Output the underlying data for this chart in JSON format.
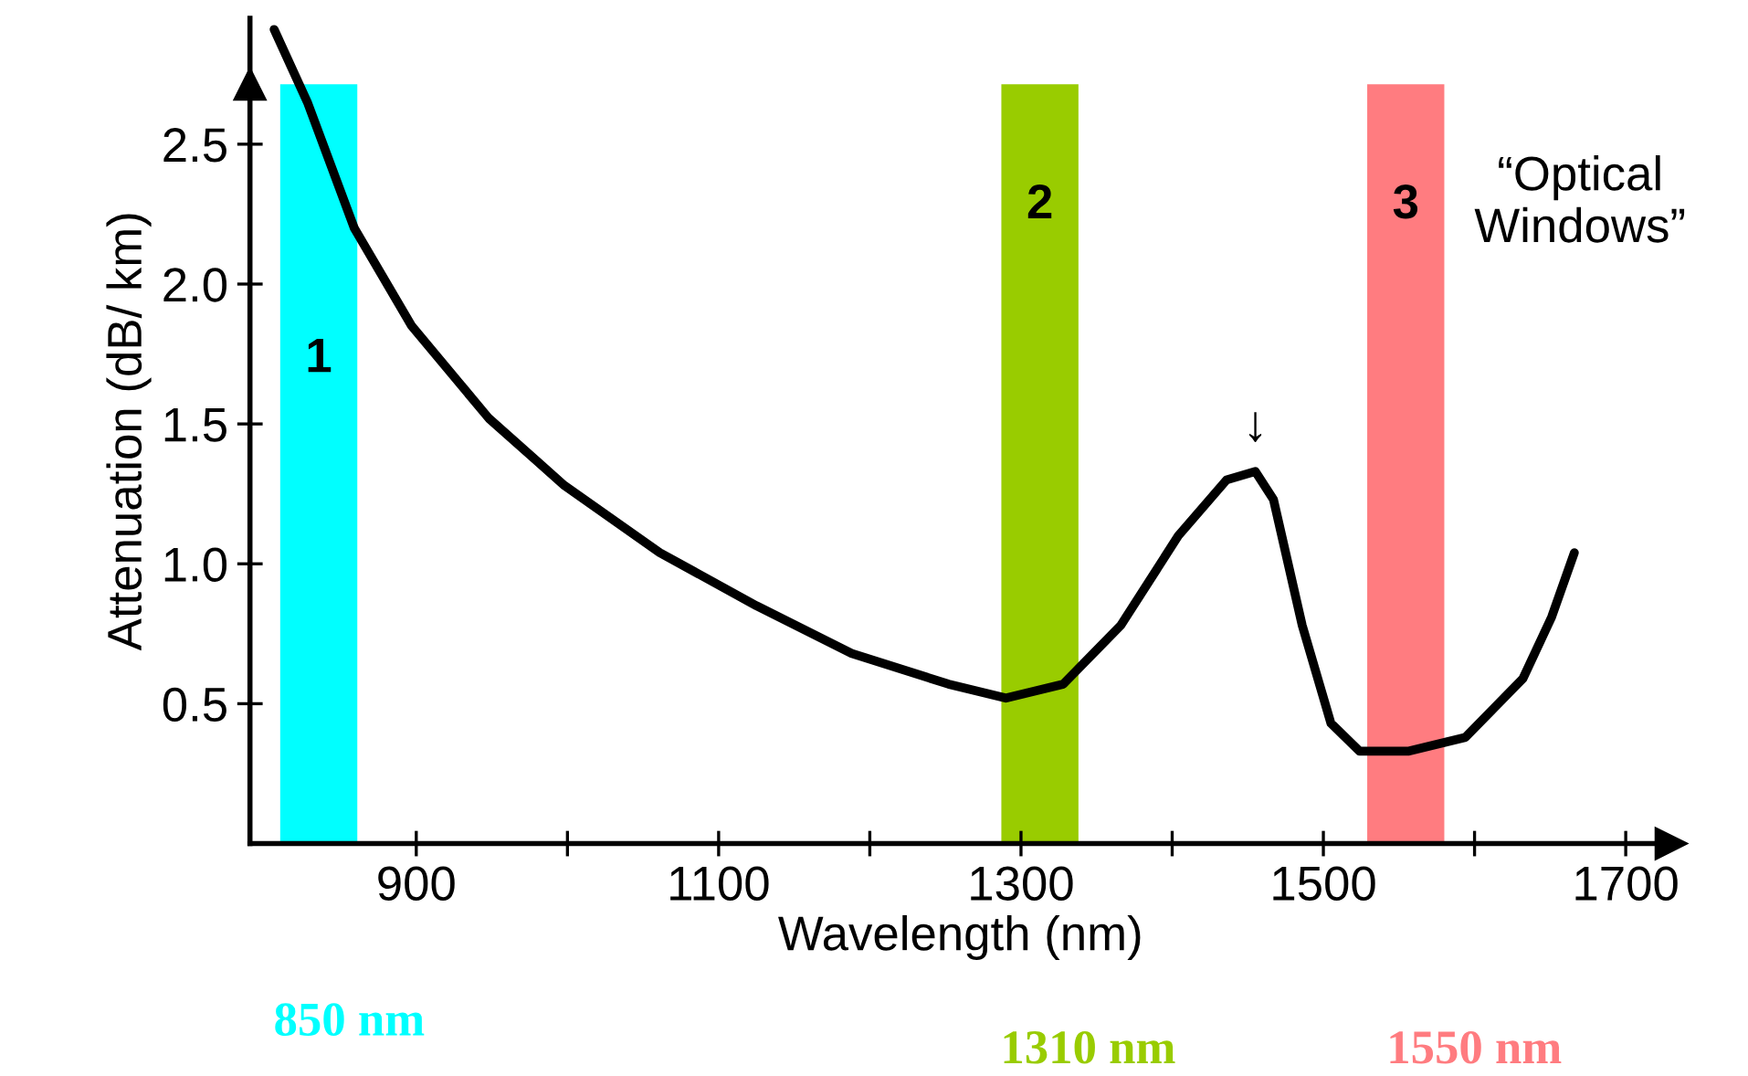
{
  "chart_data": {
    "type": "line",
    "xlabel": "Wavelength (nm)",
    "ylabel": "Attenuation (dB/ km)",
    "x": [
      806,
      828,
      859,
      897,
      948,
      998,
      1061,
      1125,
      1188,
      1252,
      1290,
      1328,
      1366,
      1404,
      1436,
      1455,
      1467,
      1486,
      1505,
      1524,
      1556,
      1594,
      1632,
      1651,
      1666
    ],
    "series": [
      {
        "color": "#000000",
        "values": [
          2.91,
          2.65,
          2.2,
          1.85,
          1.52,
          1.28,
          1.04,
          0.85,
          0.68,
          0.57,
          0.52,
          0.57,
          0.78,
          1.1,
          1.3,
          1.33,
          1.23,
          0.78,
          0.43,
          0.33,
          0.33,
          0.38,
          0.59,
          0.81,
          1.04
        ]
      }
    ],
    "xlim": [
      790,
      1730
    ],
    "ylim": [
      0,
      2.95
    ],
    "xticks": [
      900,
      {
        "value": 1000,
        "label": null
      },
      1100,
      {
        "value": 1200,
        "label": null
      },
      1300,
      {
        "value": 1400,
        "label": null
      },
      1500,
      {
        "value": 1600,
        "label": null
      },
      1700
    ],
    "yticks": [
      0.5,
      {
        "value": 1,
        "label": "1.0"
      },
      1.5,
      {
        "value": 2,
        "label": "2.0"
      },
      2.5
    ],
    "bands": [
      {
        "axis": "x",
        "from": 810,
        "to": 861,
        "label": "1",
        "color": "#00ffff"
      },
      {
        "axis": "x",
        "from": 1287,
        "to": 1338,
        "label": "2",
        "color": "#99cc00"
      },
      {
        "axis": "x",
        "from": 1529,
        "to": 1580,
        "label": "3",
        "color": "#ff7c80"
      }
    ],
    "annotations": [
      "“Optical\nWindows”",
      "850 nm",
      "1310 nm",
      "1550 nm",
      {
        "text": "↓",
        "x": 1455,
        "y": 1.33
      }
    ],
    "grid": false,
    "legend": false,
    "marker": "none",
    "line_style": "solid"
  }
}
